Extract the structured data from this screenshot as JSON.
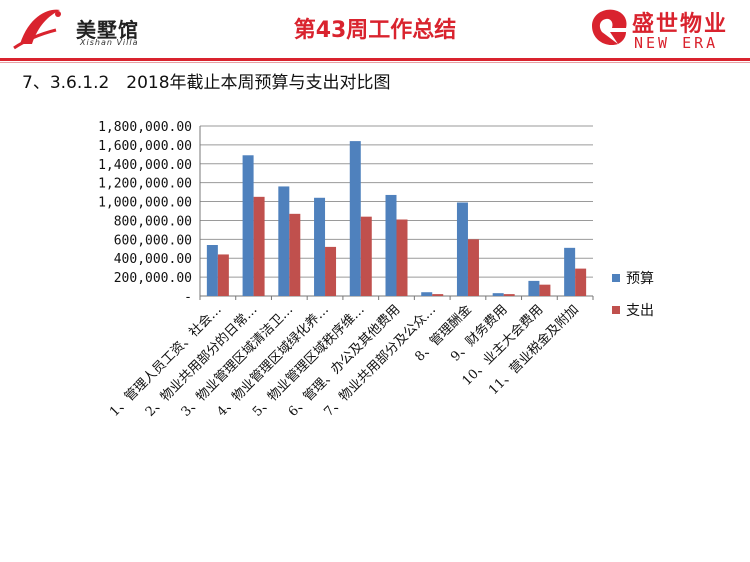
{
  "header": {
    "brand_name": "美墅馆",
    "brand_sub": "Xishan Villa",
    "title": "第43周工作总结",
    "right_logo_cn": "盛世物业",
    "right_logo_en": "NEW ERA"
  },
  "section_heading": "7、3.6.1.2　2018年截止本周预算与支出对比图",
  "colors": {
    "budget": "#4f81bd",
    "spend": "#c0504d",
    "accent": "#d9232e"
  },
  "chart_data": {
    "type": "bar",
    "title": "",
    "xlabel": "",
    "ylabel": "",
    "ylim": [
      0,
      1800000
    ],
    "grid": true,
    "legend_position": "right",
    "y_ticks": [
      {
        "value": 0,
        "label": "-"
      },
      {
        "value": 200000,
        "label": "200,000.00"
      },
      {
        "value": 400000,
        "label": "400,000.00"
      },
      {
        "value": 600000,
        "label": "600,000.00"
      },
      {
        "value": 800000,
        "label": "800,000.00"
      },
      {
        "value": 1000000,
        "label": "1,000,000.00"
      },
      {
        "value": 1200000,
        "label": "1,200,000.00"
      },
      {
        "value": 1400000,
        "label": "1,400,000.00"
      },
      {
        "value": 1600000,
        "label": "1,600,000.00"
      },
      {
        "value": 1800000,
        "label": "1,800,000.00"
      }
    ],
    "categories": [
      "1、管理人员工资、社会…",
      "2、物业共用部分的日常…",
      "3、物业管理区域清洁卫…",
      "4、物业管理区域绿化养…",
      "5、物业管理区域秩序维…",
      "6、管理、办公及其他费用",
      "7、物业共用部分及公众…",
      "8、管理酬金",
      "9、财务费用",
      "10、业主大会费用",
      "11、营业税金及附加"
    ],
    "series": [
      {
        "name": "预算",
        "values": [
          540000,
          1490000,
          1160000,
          1040000,
          1640000,
          1070000,
          40000,
          990000,
          30000,
          160000,
          510000
        ]
      },
      {
        "name": "支出",
        "values": [
          440000,
          1050000,
          870000,
          520000,
          840000,
          810000,
          20000,
          600000,
          20000,
          120000,
          290000
        ]
      }
    ]
  }
}
